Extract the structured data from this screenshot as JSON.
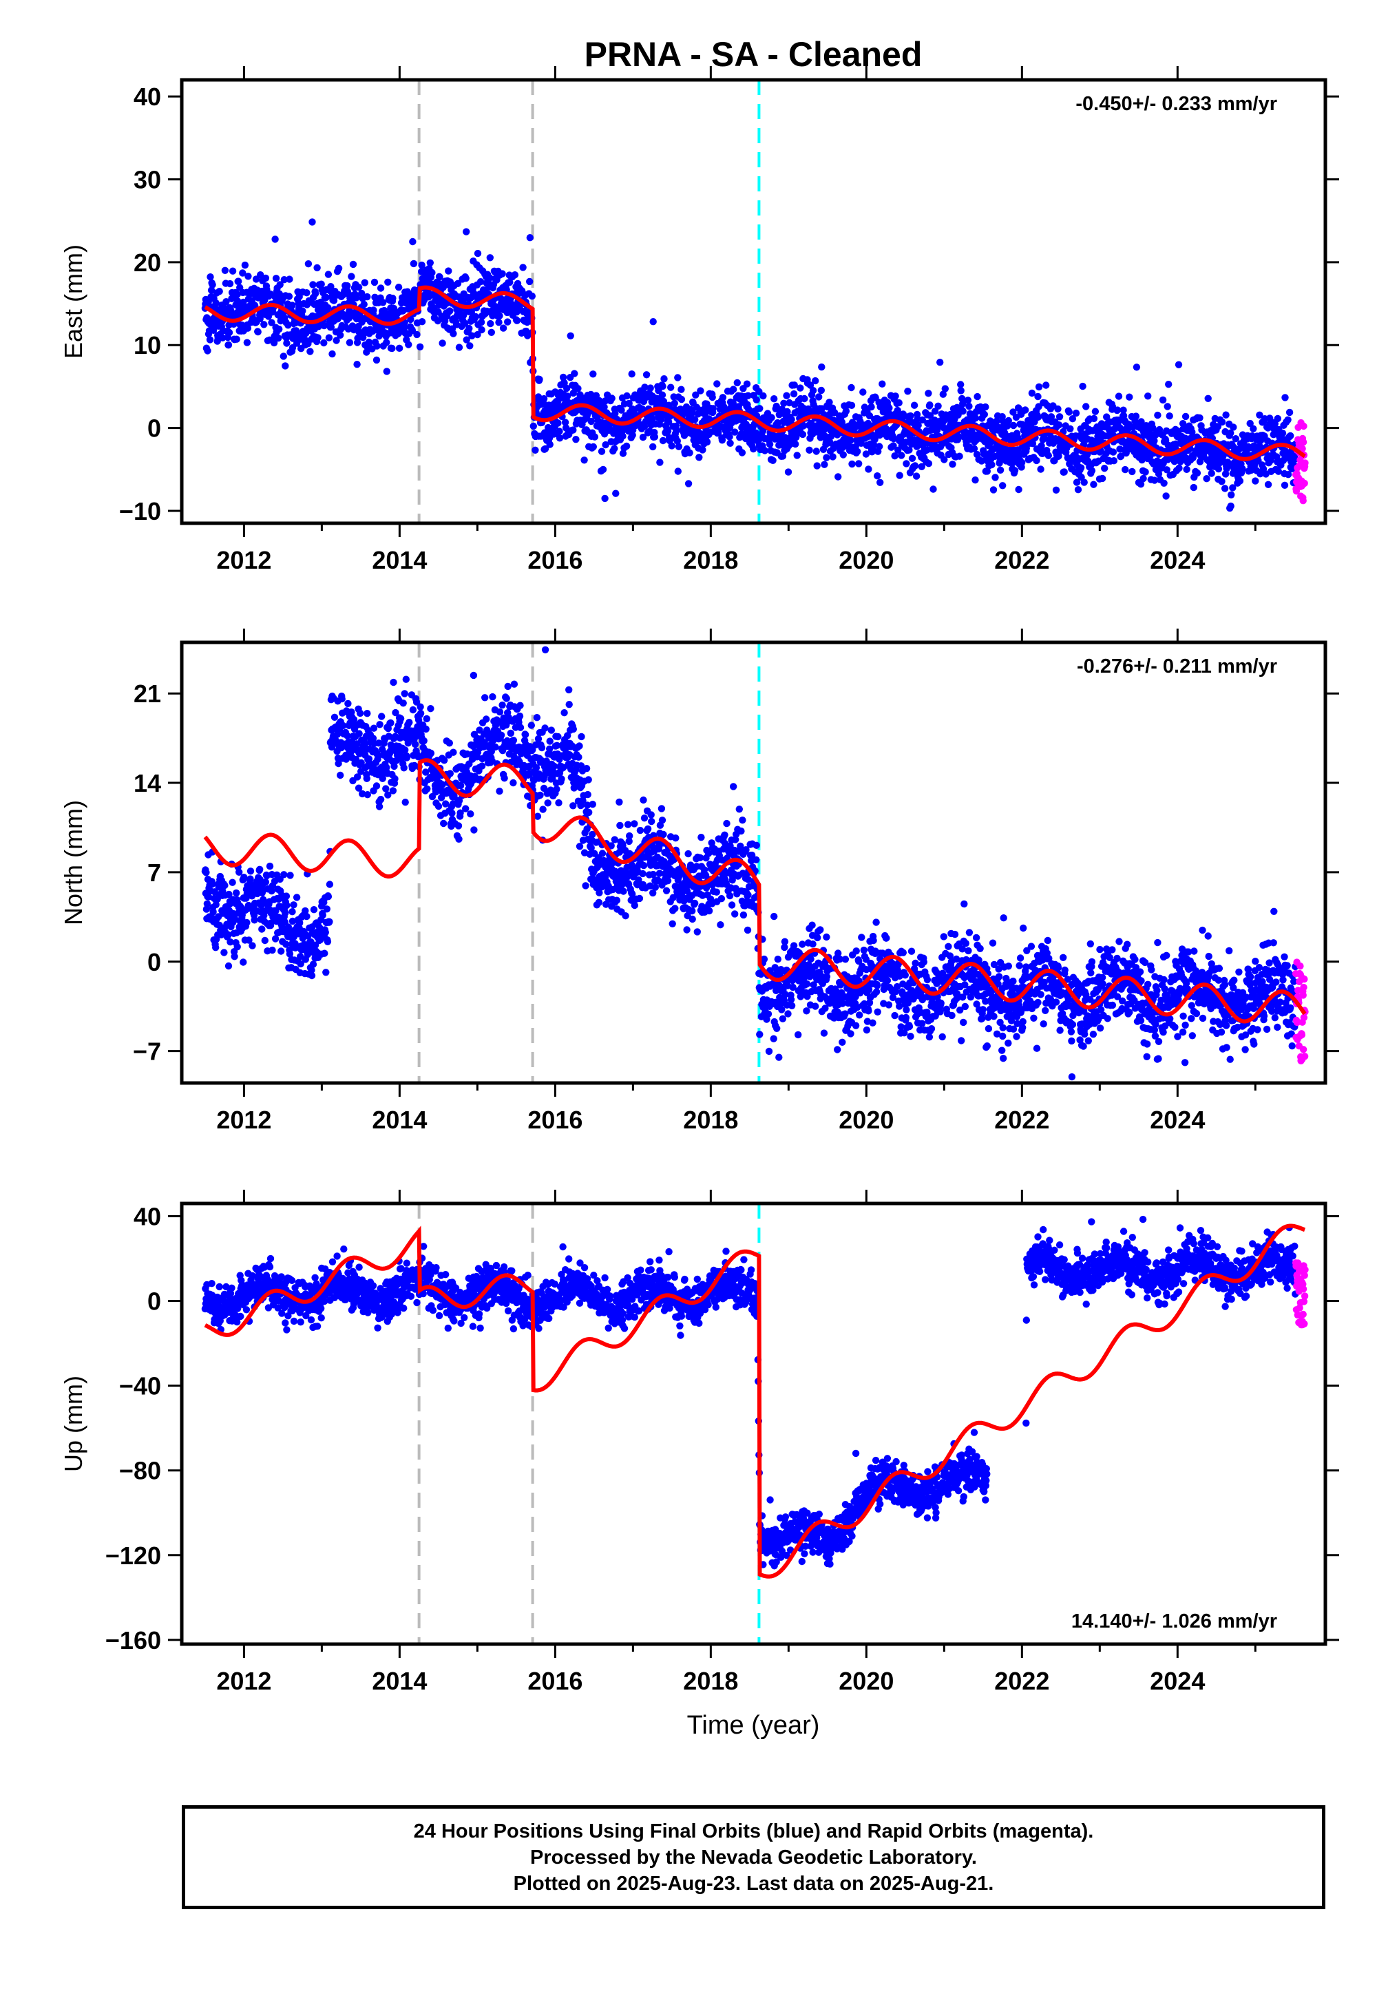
{
  "title": "PRNA  - SA - Cleaned",
  "xlabel": "Time (year)",
  "colors": {
    "final": "#0000ff",
    "rapid": "#ff00ff",
    "model": "#ff0000",
    "offset_equipment": "#bbbbbb",
    "offset_earthquake": "#00ffff"
  },
  "footer": {
    "line1": "24 Hour Positions Using Final Orbits (blue) and Rapid Orbits (magenta).",
    "line2": "Processed by the Nevada Geodetic Laboratory.",
    "line3": "Plotted on 2025-Aug-23. Last data on 2025-Aug-21."
  },
  "chart_data": [
    {
      "type": "scatter",
      "component": "east",
      "ylabel": "East (mm)",
      "rate_label": "-0.450+/- 0.233 mm/yr",
      "rate_position": "top-right",
      "xlim": [
        2011.2,
        2025.9
      ],
      "ylim": [
        -11.5,
        42
      ],
      "xticks": [
        "2012",
        "2014",
        "2016",
        "2018",
        "2020",
        "2022",
        "2024"
      ],
      "yticks": [
        "-10",
        "0",
        "10",
        "20",
        "30",
        "40"
      ],
      "offsets": [
        {
          "x": 2014.25,
          "kind": "equipment",
          "style": "gray dashed"
        },
        {
          "x": 2015.71,
          "kind": "equipment",
          "style": "gray dashed"
        },
        {
          "x": 2018.62,
          "kind": "earthquake",
          "style": "cyan dashed"
        }
      ],
      "data_start": 2011.5,
      "final_end": 2025.52,
      "rapid_range": [
        2025.52,
        2025.64
      ],
      "series": [
        {
          "label": "Final Orbits (blue)",
          "trend": [
            [
              2011.5,
              14
            ],
            [
              2014.25,
              13.5
            ],
            [
              2014.26,
              16
            ],
            [
              2015.71,
              15
            ],
            [
              2015.72,
              2
            ],
            [
              2018.62,
              0.8
            ],
            [
              2025.64,
              -3.2
            ]
          ],
          "seasonal_amp": 1.0,
          "scatter_sd": 2.0
        },
        {
          "label": "Rapid Orbits (magenta)",
          "y_range": [
            -9,
            1.5
          ]
        }
      ],
      "model_curve": {
        "trend": [
          [
            2011.5,
            14
          ],
          [
            2014.25,
            13.5
          ],
          [
            2014.26,
            16
          ],
          [
            2015.71,
            15
          ],
          [
            2015.72,
            2
          ],
          [
            2018.62,
            0.8
          ],
          [
            2025.64,
            -3.2
          ]
        ],
        "seasonal_amp": 1.0
      }
    },
    {
      "type": "scatter",
      "component": "north",
      "ylabel": "North (mm)",
      "rate_label": "-0.276+/- 0.211 mm/yr",
      "rate_position": "top-right",
      "xlim": [
        2011.2,
        2025.9
      ],
      "ylim": [
        -9.5,
        25
      ],
      "xticks": [
        "2012",
        "2014",
        "2016",
        "2018",
        "2020",
        "2022",
        "2024"
      ],
      "yticks": [
        "-7",
        "0",
        "7",
        "14",
        "21"
      ],
      "offsets": [
        {
          "x": 2014.25,
          "kind": "equipment",
          "style": "gray dashed"
        },
        {
          "x": 2015.71,
          "kind": "equipment",
          "style": "gray dashed"
        },
        {
          "x": 2018.62,
          "kind": "earthquake",
          "style": "cyan dashed"
        }
      ],
      "data_start": 2011.5,
      "final_end": 2025.52,
      "rapid_range": [
        2025.52,
        2025.64
      ],
      "series": [
        {
          "label": "Final Orbits (blue)",
          "trend": [
            [
              2011.5,
              5.5
            ],
            [
              2013.1,
              2
            ],
            [
              2013.11,
              16.5
            ],
            [
              2014.0,
              17.5
            ],
            [
              2014.6,
              14
            ],
            [
              2015.4,
              17
            ],
            [
              2016.2,
              15.5
            ],
            [
              2016.5,
              8
            ],
            [
              2017.6,
              7
            ],
            [
              2018.6,
              6.5
            ],
            [
              2018.63,
              -1.5
            ],
            [
              2025.64,
              -3
            ]
          ],
          "seasonal_amp": 1.2,
          "scatter_sd": 1.6
        },
        {
          "label": "Rapid Orbits (magenta)",
          "y_range": [
            -8,
            0
          ]
        }
      ],
      "model_curve": {
        "trend": [
          [
            2011.5,
            9
          ],
          [
            2014.25,
            7.8
          ],
          [
            2014.26,
            14.5
          ],
          [
            2015.71,
            14
          ],
          [
            2015.72,
            11
          ],
          [
            2018.62,
            6.2
          ],
          [
            2018.63,
            0
          ],
          [
            2025.64,
            -3.8
          ]
        ],
        "seasonal_amp": 1.3
      }
    },
    {
      "type": "scatter",
      "component": "up",
      "ylabel": "Up (mm)",
      "rate_label": "14.140+/- 1.026 mm/yr",
      "rate_position": "bottom-right",
      "xlim": [
        2011.2,
        2025.9
      ],
      "ylim": [
        -162,
        46
      ],
      "xticks": [
        "2012",
        "2014",
        "2016",
        "2018",
        "2020",
        "2022",
        "2024"
      ],
      "yticks": [
        "-160",
        "-120",
        "-80",
        "-40",
        "0",
        "40"
      ],
      "offsets": [
        {
          "x": 2014.25,
          "kind": "equipment",
          "style": "gray dashed"
        },
        {
          "x": 2015.71,
          "kind": "equipment",
          "style": "gray dashed"
        },
        {
          "x": 2018.62,
          "kind": "earthquake",
          "style": "cyan dashed"
        }
      ],
      "data_start": 2011.5,
      "final_end": 2025.52,
      "rapid_range": [
        2025.52,
        2025.64
      ],
      "series": [
        {
          "label": "Final Orbits (blue)",
          "trend": [
            [
              2011.5,
              2
            ],
            [
              2014.2,
              5
            ],
            [
              2015.7,
              2
            ],
            [
              2018.6,
              3
            ],
            [
              2018.63,
              -108
            ],
            [
              2019.5,
              -115
            ],
            [
              2019.9,
              -92
            ],
            [
              2022.05,
              -80
            ],
            [
              2022.06,
              15
            ],
            [
              2025.64,
              15
            ]
          ],
          "seasonal_amp": 5,
          "scatter_sd": 5
        },
        {
          "label": "Rapid Orbits (magenta)",
          "y_range": [
            -12,
            18
          ]
        }
      ],
      "model_curve": {
        "trend": [
          [
            2011.5,
            -15
          ],
          [
            2014.25,
            28
          ],
          [
            2014.26,
            0
          ],
          [
            2015.71,
            8
          ],
          [
            2015.72,
            -38
          ],
          [
            2018.62,
            22
          ],
          [
            2018.63,
            -128
          ],
          [
            2025.64,
            35
          ]
        ],
        "seasonal_amp": 6
      }
    }
  ]
}
